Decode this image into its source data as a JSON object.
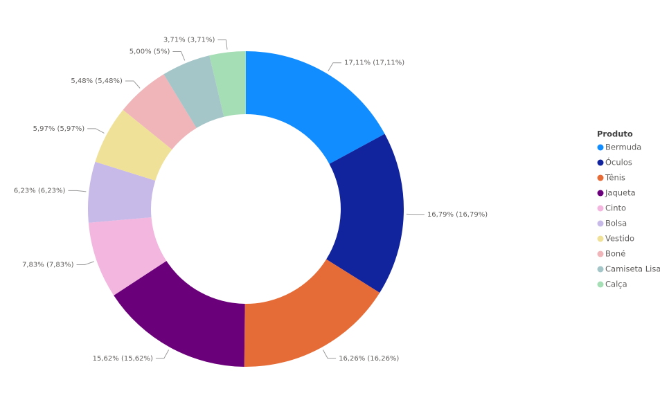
{
  "chart_data": {
    "type": "donut",
    "legend_title": "Produto",
    "categories": [
      "Bermuda",
      "Óculos",
      "Tênis",
      "Jaqueta",
      "Cinto",
      "Bolsa",
      "Vestido",
      "Boné",
      "Camiseta Lisa",
      "Calça"
    ],
    "values": [
      17.11,
      16.79,
      16.26,
      15.62,
      7.83,
      6.23,
      5.97,
      5.48,
      5.0,
      3.71
    ],
    "value_labels": [
      "17,11% (17,11%)",
      "16,79% (16,79%)",
      "16,26% (16,26%)",
      "15,62% (15,62%)",
      "7,83% (7,83%)",
      "6,23% (6,23%)",
      "5,97% (5,97%)",
      "5,48% (5,48%)",
      "5,00% (5%)",
      "3,71% (3,71%)"
    ],
    "colors": [
      "#118DFF",
      "#12239E",
      "#E66C37",
      "#6B007B",
      "#F2B6DF",
      "#C7B9E8",
      "#F0E199",
      "#EFB5B9",
      "#A5C6C9",
      "#A5DDB5"
    ]
  }
}
